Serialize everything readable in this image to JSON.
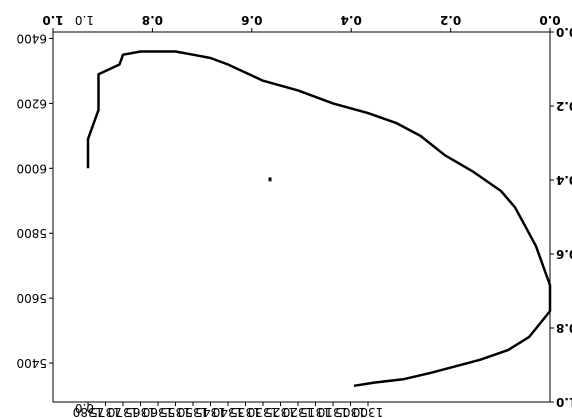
{
  "chart_data": {
    "type": "line",
    "note_orientation": "figure is rendered rotated 180 degrees (upside-down)",
    "overlay_axes": {
      "ticks": [
        "0.0",
        "0.2",
        "0.4",
        "0.6",
        "0.8",
        "1.0"
      ]
    },
    "x_axis": {
      "tick_labels": [
        "1300",
        "1305",
        "1310",
        "1315",
        "1320",
        "1325",
        "1330",
        "1335",
        "1340",
        "1345",
        "1350",
        "1355",
        "1360",
        "1365",
        "1370",
        "1375",
        "1380"
      ]
    },
    "y_axis": {
      "tick_labels": [
        "5400",
        "5600",
        "5800",
        "6000",
        "6200",
        "6400"
      ]
    },
    "extra_labels": [
      "1.0",
      "0.0"
    ],
    "series": [
      {
        "values": [
          [
            1380,
            6000
          ],
          [
            1380,
            6090
          ],
          [
            1377,
            6180
          ],
          [
            1377,
            6290
          ],
          [
            1371,
            6320
          ],
          [
            1370,
            6350
          ],
          [
            1365,
            6360
          ],
          [
            1355,
            6360
          ],
          [
            1350,
            6350
          ],
          [
            1345,
            6340
          ],
          [
            1340,
            6320
          ],
          [
            1330,
            6270
          ],
          [
            1320,
            6240
          ],
          [
            1310,
            6200
          ],
          [
            1300,
            6170
          ],
          [
            1292,
            6140
          ],
          [
            1285,
            6100
          ],
          [
            1278,
            6040
          ],
          [
            1270,
            5990
          ],
          [
            1262,
            5930
          ],
          [
            1258,
            5880
          ],
          [
            1255,
            5820
          ],
          [
            1252,
            5760
          ],
          [
            1250,
            5700
          ],
          [
            1248,
            5640
          ],
          [
            1248,
            5560
          ],
          [
            1254,
            5480
          ],
          [
            1260,
            5440
          ],
          [
            1268,
            5410
          ],
          [
            1275,
            5390
          ],
          [
            1282,
            5370
          ],
          [
            1290,
            5350
          ],
          [
            1298,
            5340
          ],
          [
            1304,
            5330
          ]
        ]
      },
      {
        "values": [
          [
            1328,
            5960
          ],
          [
            1328,
            5972
          ]
        ]
      }
    ]
  }
}
